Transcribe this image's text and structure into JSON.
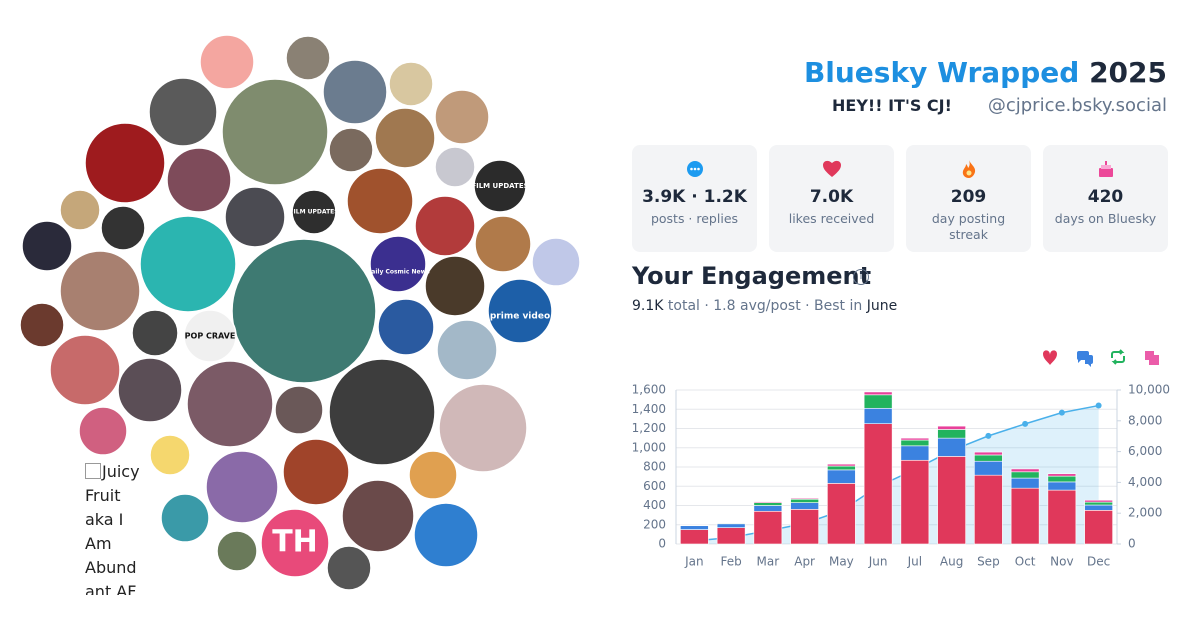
{
  "header": {
    "title_brand": "Bluesky Wrapped",
    "title_year": "2025",
    "display_name": "HEY!! IT'S CJ!",
    "handle": "@cjprice.bsky.social"
  },
  "stats": [
    {
      "value": "3.9K · 1.2K",
      "label": "posts · replies"
    },
    {
      "value": "7.0K",
      "label": "likes received"
    },
    {
      "value": "209",
      "label": "day posting streak"
    },
    {
      "value": "420",
      "label": "days on Bluesky"
    }
  ],
  "engagement": {
    "title": "Your Engagement",
    "total": "9.1K",
    "summary": "total · 1.8 avg/post · Best in",
    "best_month": "June"
  },
  "avatars": {
    "texts": [
      "TH",
      "POP CRAVE",
      "FILM UPDATES",
      "FILM UPDATES",
      "Daily Cosmic News",
      "prime video"
    ],
    "broken_image_alt": "Juicy Fruit aka I Am Abundant AF"
  },
  "chart_data": {
    "type": "bar",
    "stacked": true,
    "categories": [
      "Jan",
      "Feb",
      "Mar",
      "Apr",
      "May",
      "Jun",
      "Jul",
      "Aug",
      "Sep",
      "Oct",
      "Nov",
      "Dec"
    ],
    "series": [
      {
        "color": "#e0385b",
        "values": [
          150,
          170,
          340,
          360,
          630,
          1250,
          870,
          910,
          715,
          580,
          560,
          350
        ]
      },
      {
        "color": "#3b82e0",
        "values": [
          40,
          40,
          60,
          70,
          140,
          160,
          150,
          190,
          145,
          105,
          85,
          55
        ]
      },
      {
        "color": "#22b35e",
        "values": [
          5,
          8,
          30,
          35,
          40,
          140,
          60,
          90,
          65,
          65,
          60,
          30
        ]
      },
      {
        "color": "#e8409a",
        "values": [
          3,
          3,
          10,
          10,
          20,
          30,
          20,
          35,
          30,
          30,
          25,
          20
        ]
      },
      {
        "type": "line",
        "axis": "y2",
        "color": "#4ab0ea",
        "values": [
          200,
          420,
          860,
          1330,
          2160,
          3740,
          4840,
          6070,
          7020,
          7800,
          8530,
          8990
        ]
      }
    ],
    "ylim": [
      0,
      1600
    ],
    "yticks": [
      0,
      200,
      400,
      600,
      800,
      {
        "value": 1000,
        "label": "1,000"
      },
      {
        "value": 1200,
        "label": "1,200"
      },
      {
        "value": 1400,
        "label": "1,400"
      },
      {
        "value": 1600,
        "label": "1,600"
      }
    ],
    "y2lim": [
      0,
      10000
    ],
    "y2ticks": [
      0,
      {
        "value": 2000,
        "label": "2,000"
      },
      {
        "value": 4000,
        "label": "4,000"
      },
      {
        "value": 6000,
        "label": "6,000"
      },
      {
        "value": 8000,
        "label": "8,000"
      },
      {
        "value": 10000,
        "label": "10,000"
      }
    ],
    "grid": true
  }
}
